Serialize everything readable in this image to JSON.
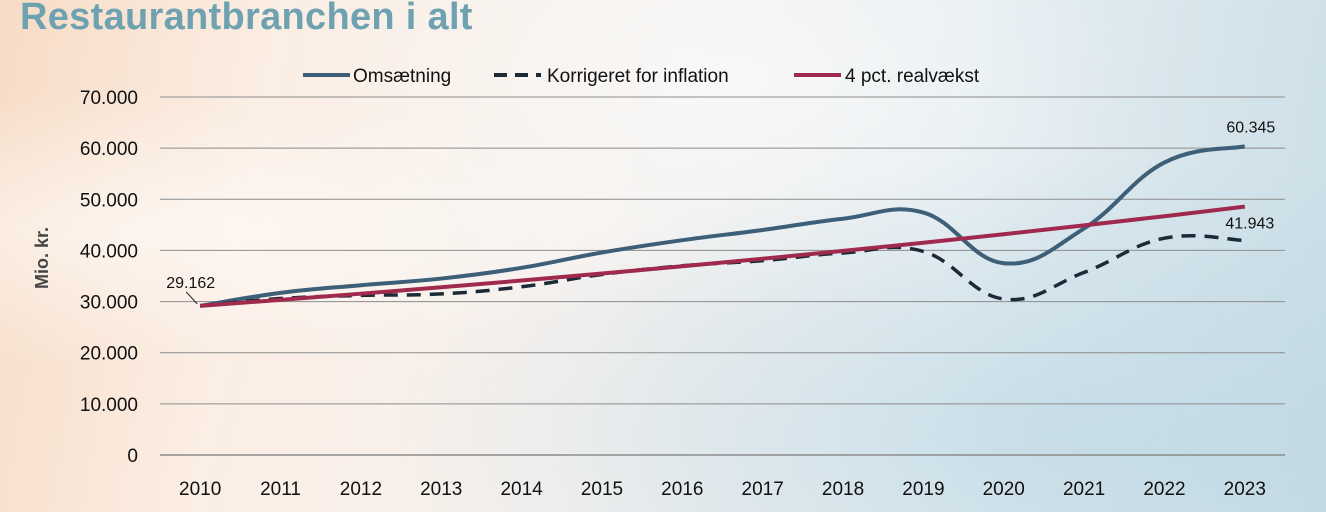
{
  "title": "Restaurantbranchen i alt",
  "colors": {
    "title": "#6fa2b0",
    "omsaetning": "#3e5f78",
    "korrigeret": "#1b2a36",
    "realvaekst": "#a0294e",
    "grid": "#8c8c8c"
  },
  "chart_data": {
    "type": "line",
    "ylabel": "Mio. kr.",
    "ylim": [
      0,
      70000
    ],
    "yticks": [
      "0",
      "10.000",
      "20.000",
      "30.000",
      "40.000",
      "50.000",
      "60.000",
      "70.000"
    ],
    "categories": [
      "2010",
      "2011",
      "2012",
      "2013",
      "2014",
      "2015",
      "2016",
      "2017",
      "2018",
      "2019",
      "2020",
      "2021",
      "2022",
      "2023"
    ],
    "legend_position": "top-center",
    "grid": true,
    "series": [
      {
        "name": "Omsætning",
        "style": "solid",
        "values": [
          29162,
          31700,
          33200,
          34500,
          36600,
          39600,
          42000,
          44000,
          46200,
          47400,
          37500,
          44300,
          57200,
          60345
        ]
      },
      {
        "name": "Korrigeret for inflation",
        "style": "dashed",
        "values": [
          29162,
          30600,
          31200,
          31500,
          32900,
          35300,
          37000,
          38000,
          39500,
          39800,
          30500,
          35700,
          42400,
          41943
        ]
      },
      {
        "name": "4 pct. realvækst",
        "style": "solid",
        "values": [
          29162,
          30328,
          31541,
          32803,
          34115,
          35480,
          36899,
          38375,
          39910,
          41506,
          43166,
          44893,
          46689,
          48557
        ]
      }
    ],
    "annotations": [
      {
        "text": "29.162",
        "category": "2010",
        "value": 29162
      },
      {
        "text": "60.345",
        "category": "2023",
        "value": 60345
      },
      {
        "text": "41.943",
        "category": "2023",
        "value": 41943
      }
    ]
  }
}
